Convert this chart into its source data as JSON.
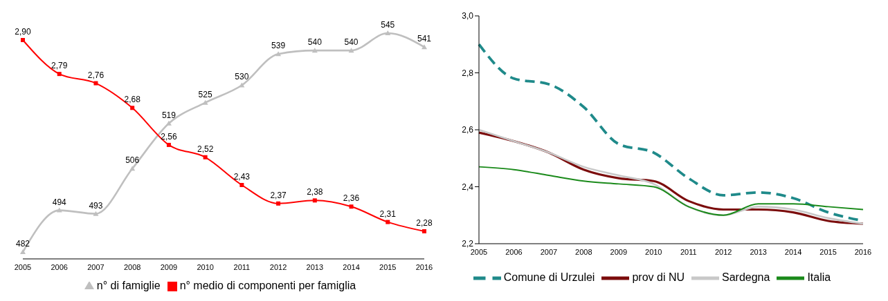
{
  "chart_data": [
    {
      "type": "line",
      "categories": [
        "2005",
        "2006",
        "2007",
        "2008",
        "2009",
        "2010",
        "2011",
        "2012",
        "2013",
        "2014",
        "2015",
        "2016"
      ],
      "tick_labels": "x",
      "legend": "bottom",
      "grid": false,
      "series": [
        {
          "name": "n° di famiglie",
          "color": "#bfbfbf",
          "marker": "triangle",
          "values": [
            482,
            494,
            493,
            506,
            519,
            525,
            530,
            539,
            540,
            540,
            545,
            541
          ],
          "value_labels": [
            "482",
            "494",
            "493",
            "506",
            "519",
            "525",
            "530",
            "539",
            "540",
            "540",
            "545",
            "541"
          ]
        },
        {
          "name": "n° medio di componenti per famiglia",
          "color": "#ff0000",
          "marker": "square",
          "axis": "y2",
          "values": [
            2.9,
            2.79,
            2.76,
            2.68,
            2.56,
            2.52,
            2.43,
            2.37,
            2.38,
            2.36,
            2.31,
            2.28
          ],
          "value_labels": [
            "2,90",
            "2,79",
            "2,76",
            "2,68",
            "2,56",
            "2,52",
            "2,43",
            "2,37",
            "2,38",
            "2,36",
            "2,31",
            "2,28"
          ]
        }
      ]
    },
    {
      "type": "line",
      "categories": [
        "2005",
        "2006",
        "2007",
        "2008",
        "2009",
        "2010",
        "2011",
        "2012",
        "2013",
        "2014",
        "2015",
        "2016"
      ],
      "ylim": [
        2.2,
        3.0
      ],
      "yticks": [
        {
          "value": 2.2,
          "label": "2,2"
        },
        {
          "value": 2.4,
          "label": "2,4"
        },
        {
          "value": 2.6,
          "label": "2,6"
        },
        {
          "value": 2.8,
          "label": "2,8"
        },
        {
          "value": 3.0,
          "label": "3,0"
        }
      ],
      "legend": "bottom",
      "grid": false,
      "marker": "none",
      "series": [
        {
          "name": "Comune di Urzulei",
          "color": "#1f8a8a",
          "line_style": "dashed",
          "values": [
            2.9,
            2.78,
            2.76,
            2.68,
            2.55,
            2.52,
            2.43,
            2.37,
            2.38,
            2.36,
            2.31,
            2.28
          ]
        },
        {
          "name": "prov di NU",
          "color": "#7b0c0c",
          "values": [
            2.59,
            2.56,
            2.52,
            2.46,
            2.43,
            2.42,
            2.35,
            2.32,
            2.32,
            2.31,
            2.28,
            2.27
          ]
        },
        {
          "name": "Sardegna",
          "color": "#c8c8c8",
          "values": [
            2.6,
            2.56,
            2.52,
            2.47,
            2.44,
            2.41,
            2.33,
            2.3,
            2.33,
            2.32,
            2.29,
            2.27
          ]
        },
        {
          "name": "Italia",
          "color": "#1a8a1a",
          "values": [
            2.47,
            2.46,
            2.44,
            2.42,
            2.41,
            2.4,
            2.33,
            2.3,
            2.34,
            2.34,
            2.33,
            2.32
          ]
        }
      ]
    }
  ]
}
